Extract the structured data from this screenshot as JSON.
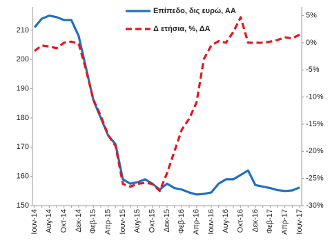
{
  "chart_data": {
    "type": "line",
    "categories": [
      "Ιουν-14",
      null,
      "Αυγ-14",
      null,
      "Οκτ-14",
      null,
      "Δεκ-14",
      null,
      "Φεβ-15",
      null,
      "Απρ-15",
      null,
      "Ιουν-15",
      null,
      "Αυγ-15",
      null,
      "Οκτ-15",
      null,
      "Δεκ-15",
      null,
      "Φεβ-16",
      null,
      "Απρ-16",
      null,
      "Ιουν-16",
      null,
      "Αυγ-16",
      null,
      "Οκτ-16",
      null,
      "Δεκ-16",
      null,
      "Φεβ-17",
      null,
      "Απρ-17",
      null,
      "Ιουν-17"
    ],
    "series": [
      {
        "name": "Επίπεδο, δις ευρώ, ΑΑ",
        "color": "#1f6fc5",
        "axis": "y",
        "values": [
          211,
          214,
          215,
          214.5,
          213.5,
          213.5,
          208,
          197,
          186,
          180,
          174,
          171,
          159,
          157.5,
          158,
          159,
          157.5,
          155.5,
          157.5,
          156,
          155.5,
          154.5,
          153.8,
          154,
          154.5,
          157.5,
          159,
          159,
          160.5,
          162,
          157,
          156.5,
          156,
          155.3,
          155,
          155.2,
          156.2
        ]
      },
      {
        "name": "Δ ετήσια, %, ΔΑ",
        "color": "#e8141c",
        "axis": "y2",
        "values": [
          -1.5,
          -0.5,
          -0.7,
          -1,
          0,
          0.2,
          -0.2,
          -5,
          -10.5,
          -13.5,
          -17,
          -19,
          -26,
          -26.5,
          -26,
          -25.8,
          -26,
          -27.3,
          -24,
          -20,
          -16,
          -14,
          -11,
          -3,
          -0.5,
          0.3,
          0,
          2,
          4.7,
          0,
          0,
          0,
          0.2,
          0.5,
          1,
          0.8,
          1.5
        ]
      }
    ],
    "ylim": [
      150,
      218
    ],
    "yticks": [
      150,
      160,
      170,
      180,
      190,
      200,
      210
    ],
    "y2lim": [
      -30,
      6.6
    ],
    "y2ticks": [
      {
        "value": -30,
        "label": "-30%"
      },
      {
        "value": -25,
        "label": "-25%"
      },
      {
        "value": -20,
        "label": "-20%"
      },
      {
        "value": -15,
        "label": "-15%"
      },
      {
        "value": -10,
        "label": "-10%"
      },
      {
        "value": -5,
        "label": "-5%"
      },
      {
        "value": 0,
        "label": "0%"
      },
      {
        "value": 5,
        "label": "5%"
      }
    ],
    "grid": false
  }
}
